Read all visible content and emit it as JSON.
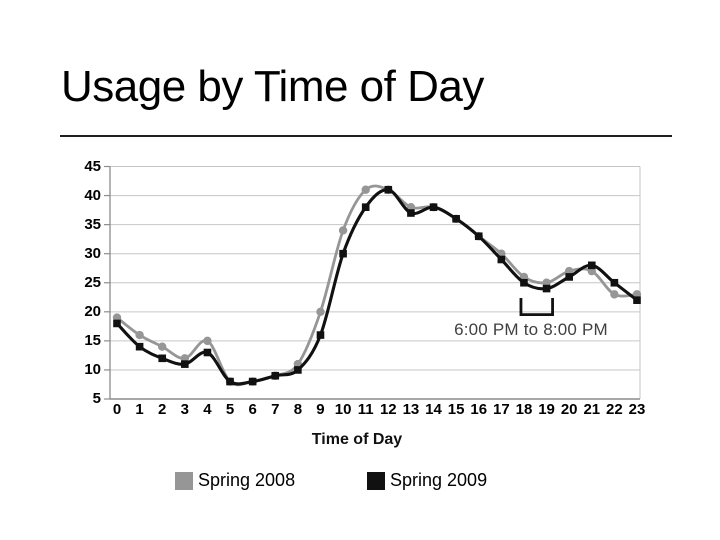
{
  "slide": {
    "title": "Usage by Time of Day"
  },
  "chart_data": {
    "type": "line",
    "title": "",
    "xlabel": "Time of Day",
    "ylabel": "",
    "categories": [
      0,
      1,
      2,
      3,
      4,
      5,
      6,
      7,
      8,
      9,
      10,
      11,
      12,
      13,
      14,
      15,
      16,
      17,
      18,
      19,
      20,
      21,
      22,
      23
    ],
    "ylim": [
      5,
      45
    ],
    "yticks": [
      5,
      10,
      15,
      20,
      25,
      30,
      35,
      40,
      45
    ],
    "grid": true,
    "smooth_lines": true,
    "legend_position": "bottom",
    "series": [
      {
        "name": "Spring 2008",
        "color": "#969696",
        "marker": "circle",
        "line_width": 2.8,
        "values": [
          19,
          16,
          14,
          12,
          15,
          8,
          8,
          9,
          11,
          20,
          34,
          41,
          41,
          38,
          38,
          36,
          33,
          30,
          26,
          25,
          27,
          27,
          23,
          23
        ]
      },
      {
        "name": "Spring 2009",
        "color": "#111111",
        "marker": "square",
        "line_width": 3.1,
        "values": [
          18,
          14,
          12,
          11,
          13,
          8,
          8,
          9,
          10,
          16,
          30,
          38,
          41,
          37,
          38,
          36,
          33,
          29,
          25,
          24,
          26,
          28,
          25,
          22
        ]
      }
    ],
    "annotation": {
      "text": "6:00 PM to 8:00 PM",
      "from_hour": 18,
      "to_hour": 19
    },
    "colors": {
      "grid": "#c6c6c6",
      "axis": "#8c8c8c",
      "bracket": "#111111",
      "annotation_text": "#404040"
    }
  }
}
